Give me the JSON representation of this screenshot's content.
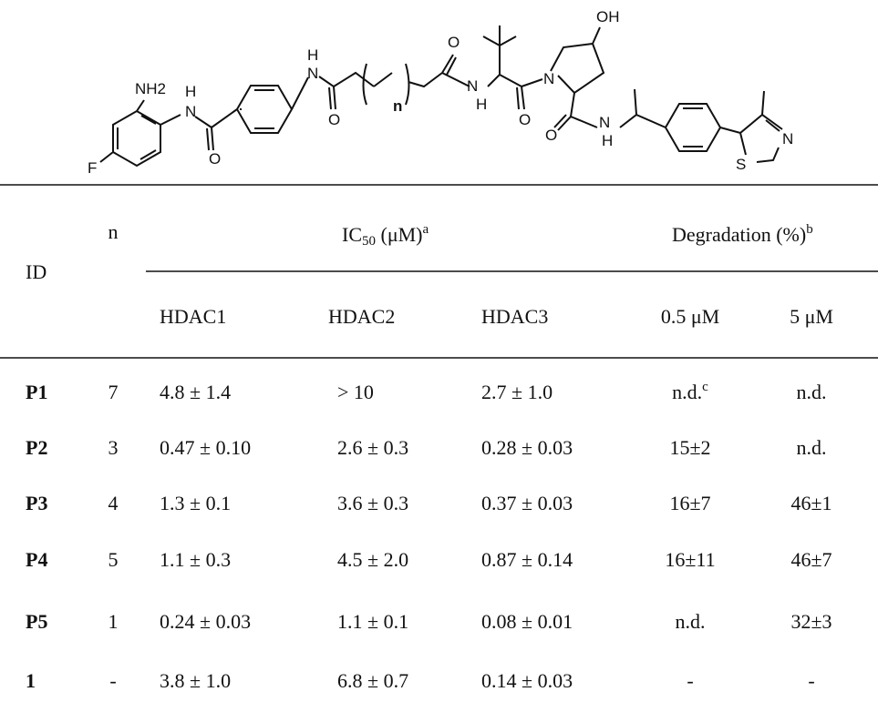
{
  "structure": {
    "labels": [
      "NH2",
      "H",
      "N",
      "O",
      "F",
      "H",
      "N",
      "O",
      "n",
      "O",
      "N",
      "H",
      "O",
      "N",
      "OH",
      "O",
      "N",
      "H",
      "S",
      "N"
    ]
  },
  "table": {
    "header": {
      "id": "ID",
      "n": "n",
      "ic50": {
        "text": "IC",
        "sub": "50",
        "unit": " (μM)",
        "sup": "a"
      },
      "degradation": {
        "text": "Degradation (%)",
        "sup": "b"
      },
      "columns": [
        "HDAC1",
        "HDAC2",
        "HDAC3",
        "0.5 μM",
        "5 μM"
      ]
    },
    "rows": [
      [
        "P1",
        "7",
        "4.8 ± 1.4",
        "> 10",
        "2.7 ± 1.0",
        {
          "text": "n.d.",
          "sup": "c"
        },
        "n.d."
      ],
      [
        "P2",
        "3",
        "0.47 ± 0.10",
        "2.6 ± 0.3",
        "0.28 ± 0.03",
        "15±2",
        "n.d."
      ],
      [
        "P3",
        "4",
        "1.3 ± 0.1",
        "3.6 ± 0.3",
        "0.37 ± 0.03",
        "16±7",
        "46±1"
      ],
      [
        "P4",
        "5",
        "1.1 ± 0.3",
        "4.5 ± 2.0",
        "0.87 ± 0.14",
        "16±11",
        "46±7"
      ],
      [
        "P5",
        "1",
        "0.24 ± 0.03",
        "1.1 ± 0.1",
        "0.08 ± 0.01",
        "n.d.",
        "32±3"
      ],
      [
        "1",
        "-",
        "3.8 ± 1.0",
        "6.8 ± 0.7",
        "0.14 ± 0.03",
        "-",
        "-"
      ]
    ]
  }
}
